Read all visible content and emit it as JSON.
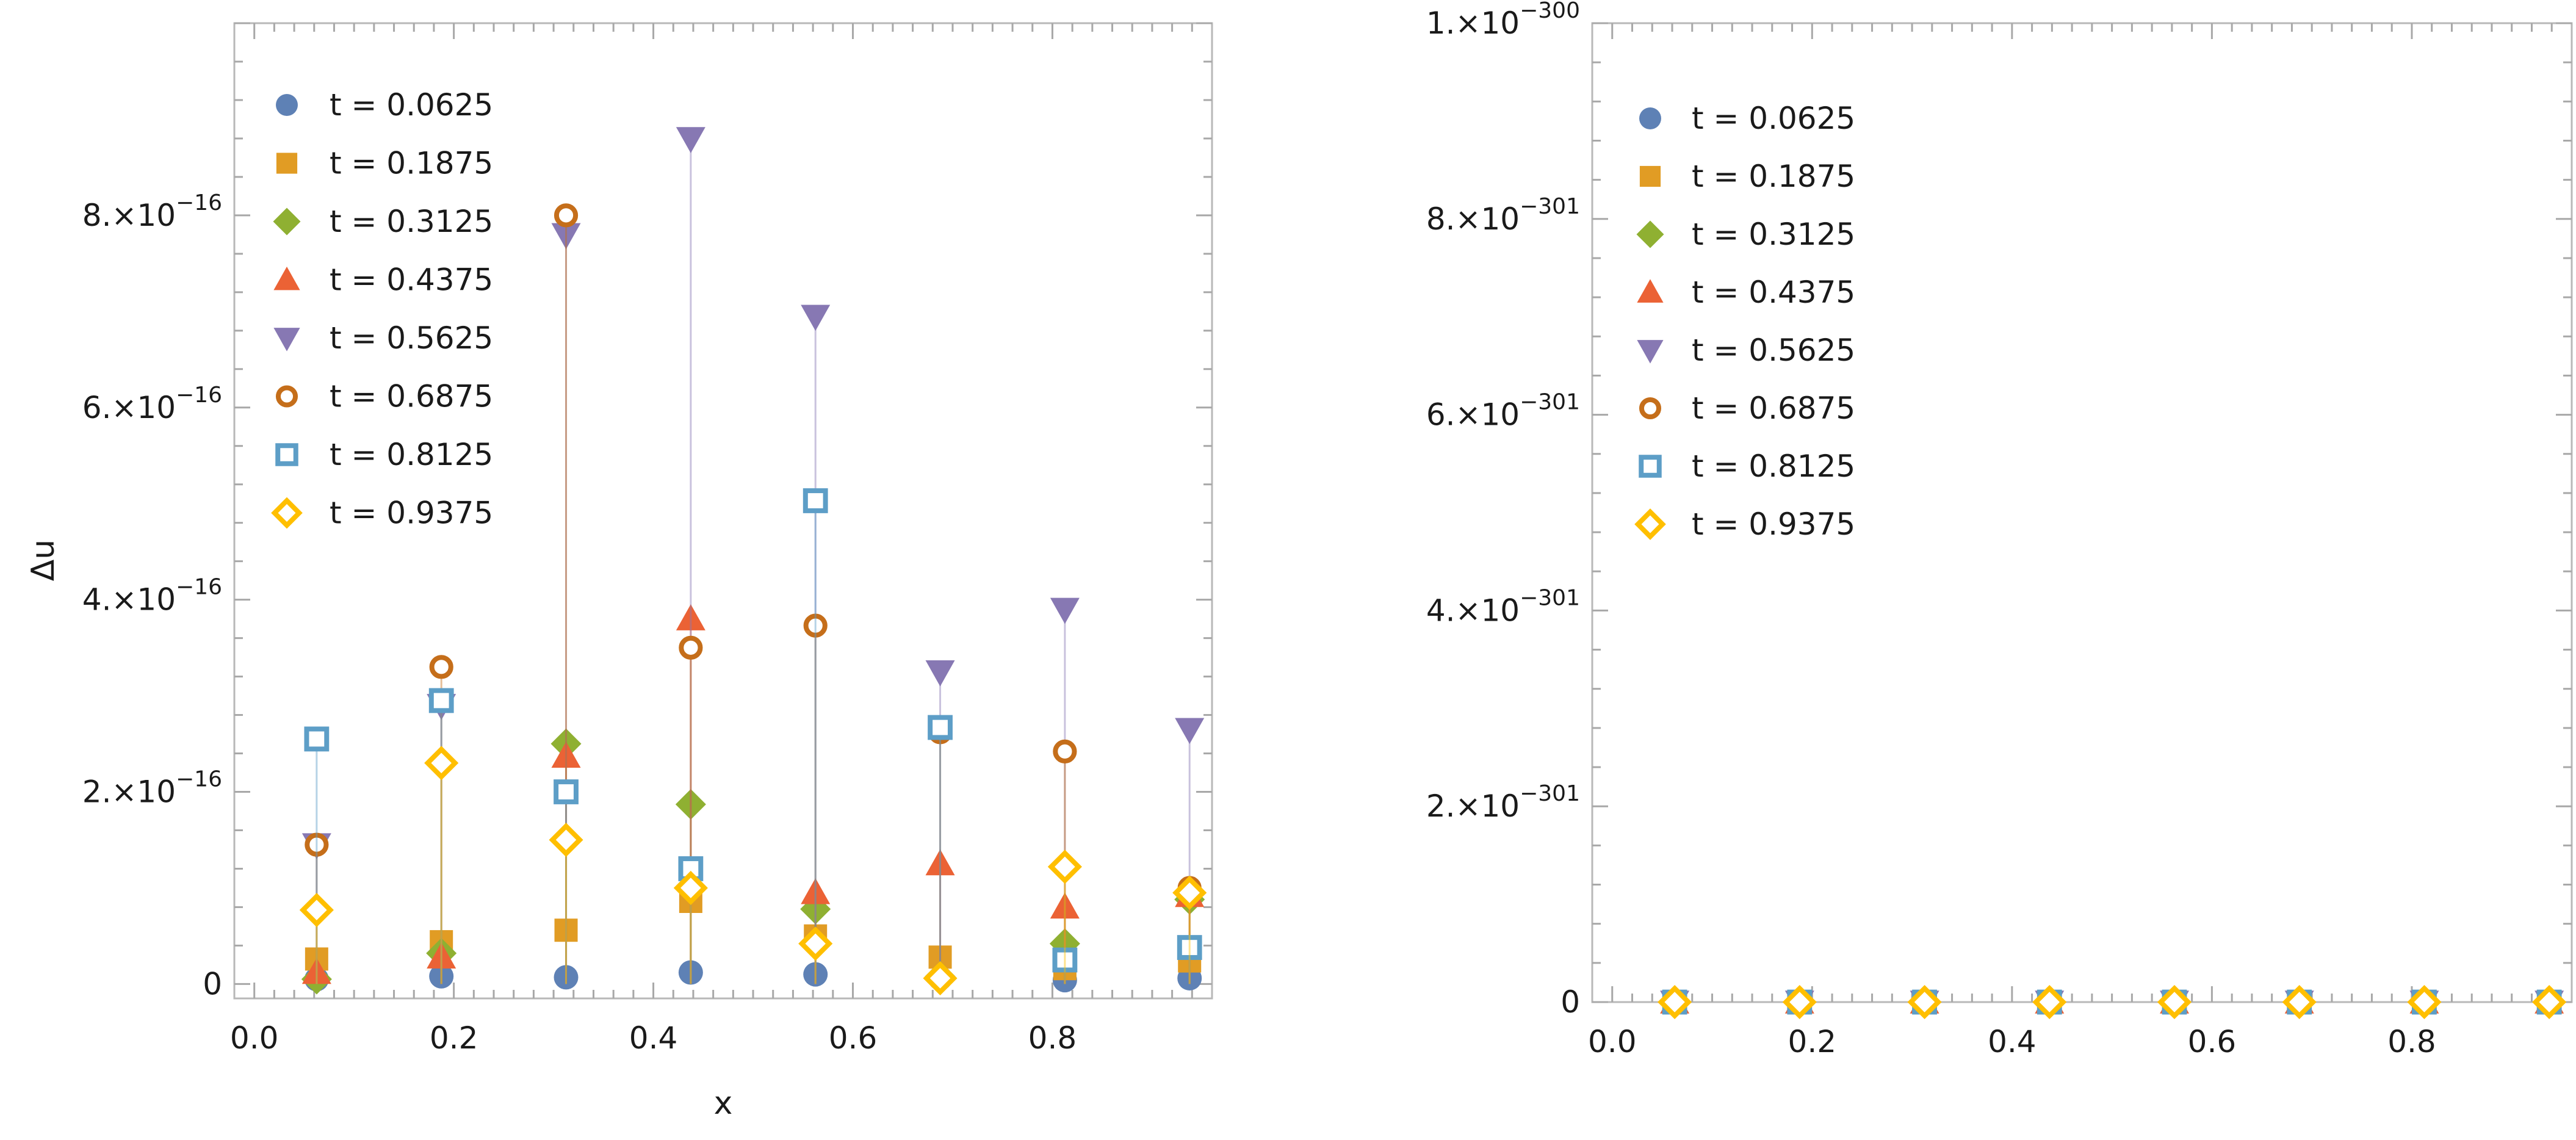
{
  "chart_data": [
    {
      "type": "scatter",
      "style": "stem",
      "title": "",
      "xlabel": "x",
      "ylabel": "Δu",
      "xlim": [
        -0.02,
        0.96
      ],
      "ylim": [
        -1.5e-17,
        1e-15
      ],
      "x_ticks": [
        0.0,
        0.2,
        0.4,
        0.6,
        0.8
      ],
      "x_tick_labels": [
        "0.0",
        "0.2",
        "0.4",
        "0.6",
        "0.8"
      ],
      "y_ticks": [
        0,
        2e-16,
        4e-16,
        6e-16,
        8e-16
      ],
      "y_tick_labels": [
        {
          "mant": "0",
          "exp": ""
        },
        {
          "mant": "2.×10",
          "exp": "−16"
        },
        {
          "mant": "4.×10",
          "exp": "−16"
        },
        {
          "mant": "6.×10",
          "exp": "−16"
        },
        {
          "mant": "8.×10",
          "exp": "−16"
        }
      ],
      "grid": false,
      "legend_position": "top-left",
      "x": [
        0.0625,
        0.1875,
        0.3125,
        0.4375,
        0.5625,
        0.6875,
        0.8125,
        0.9375
      ],
      "series": [
        {
          "name": "t = 0.0625",
          "label": "t = 0.0625",
          "marker": "circle",
          "color": "#5E81B5",
          "values": [
            5e-18,
            8e-18,
            7e-18,
            1.2e-17,
            1e-17,
            6e-18,
            4e-18,
            6e-18
          ]
        },
        {
          "name": "t = 0.1875",
          "label": "t = 0.1875",
          "marker": "square",
          "color": "#E19C24",
          "values": [
            2.6e-17,
            4.4e-17,
            5.6e-17,
            8.6e-17,
            5e-17,
            2.8e-17,
            1.6e-17,
            2.4e-17
          ]
        },
        {
          "name": "t = 0.3125",
          "label": "t = 0.3125",
          "marker": "diamond",
          "color": "#8FB032",
          "values": [
            5e-18,
            3.2e-17,
            2.5e-16,
            1.87e-16,
            7.8e-17,
            8e-18,
            4.2e-17,
            8.8e-17
          ]
        },
        {
          "name": "t = 0.4375",
          "label": "t = 0.4375",
          "marker": "triangle-up",
          "color": "#EB6235",
          "values": [
            1.2e-17,
            2.8e-17,
            2.37e-16,
            3.8e-16,
            9.5e-17,
            1.25e-16,
            8e-17,
            9.2e-17
          ]
        },
        {
          "name": "t = 0.5625",
          "label": "t = 0.5625",
          "marker": "triangle-down",
          "color": "#8778B3",
          "values": [
            1.45e-16,
            2.9e-16,
            7.8e-16,
            8.8e-16,
            6.95e-16,
            3.25e-16,
            3.9e-16,
            2.65e-16
          ]
        },
        {
          "name": "t = 0.6875",
          "label": "t = 0.6875",
          "marker": "open-circle",
          "color": "#C56E1A",
          "values": [
            1.45e-16,
            3.3e-16,
            8e-16,
            3.5e-16,
            3.73e-16,
            2.62e-16,
            2.42e-16,
            1e-16
          ]
        },
        {
          "name": "t = 0.8125",
          "label": "t = 0.8125",
          "marker": "open-square",
          "color": "#5D9EC7",
          "values": [
            2.55e-16,
            2.95e-16,
            2e-16,
            1.2e-16,
            5.03e-16,
            2.67e-16,
            2.5e-17,
            3.8e-17
          ]
        },
        {
          "name": "t = 0.9375",
          "label": "t = 0.9375",
          "marker": "open-diamond",
          "color": "#FFBF00",
          "values": [
            7.7e-17,
            2.3e-16,
            1.5e-16,
            1e-16,
            4.2e-17,
            6e-18,
            1.22e-16,
            9.5e-17
          ]
        }
      ]
    },
    {
      "type": "scatter",
      "style": "stem",
      "title": "",
      "xlabel": "",
      "ylabel": "",
      "xlim": [
        -0.02,
        0.96
      ],
      "ylim": [
        0,
        1e-300
      ],
      "x_ticks": [
        0.0,
        0.2,
        0.4,
        0.6,
        0.8
      ],
      "x_tick_labels": [
        "0.0",
        "0.2",
        "0.4",
        "0.6",
        "0.8"
      ],
      "y_ticks": [
        0,
        2e-301,
        4e-301,
        6e-301,
        8e-301,
        1e-300
      ],
      "y_tick_labels": [
        {
          "mant": "0",
          "exp": ""
        },
        {
          "mant": "2.×10",
          "exp": "−301"
        },
        {
          "mant": "4.×10",
          "exp": "−301"
        },
        {
          "mant": "6.×10",
          "exp": "−301"
        },
        {
          "mant": "8.×10",
          "exp": "−301"
        },
        {
          "mant": "1.×10",
          "exp": "−300"
        }
      ],
      "grid": false,
      "legend_position": "top-left",
      "x": [
        0.0625,
        0.1875,
        0.3125,
        0.4375,
        0.5625,
        0.6875,
        0.8125,
        0.9375
      ],
      "series": [
        {
          "name": "t = 0.0625",
          "label": "t = 0.0625",
          "marker": "circle",
          "color": "#5E81B5",
          "values": [
            0,
            0,
            0,
            0,
            0,
            0,
            0,
            0
          ]
        },
        {
          "name": "t = 0.1875",
          "label": "t = 0.1875",
          "marker": "square",
          "color": "#E19C24",
          "values": [
            0,
            0,
            0,
            0,
            0,
            0,
            0,
            0
          ]
        },
        {
          "name": "t = 0.3125",
          "label": "t = 0.3125",
          "marker": "diamond",
          "color": "#8FB032",
          "values": [
            0,
            0,
            0,
            0,
            0,
            0,
            0,
            0
          ]
        },
        {
          "name": "t = 0.4375",
          "label": "t = 0.4375",
          "marker": "triangle-up",
          "color": "#EB6235",
          "values": [
            0,
            0,
            0,
            0,
            0,
            0,
            0,
            0
          ]
        },
        {
          "name": "t = 0.5625",
          "label": "t = 0.5625",
          "marker": "triangle-down",
          "color": "#8778B3",
          "values": [
            0,
            0,
            0,
            0,
            0,
            0,
            0,
            0
          ]
        },
        {
          "name": "t = 0.6875",
          "label": "t = 0.6875",
          "marker": "open-circle",
          "color": "#C56E1A",
          "values": [
            0,
            0,
            0,
            0,
            0,
            0,
            0,
            0
          ]
        },
        {
          "name": "t = 0.8125",
          "label": "t = 0.8125",
          "marker": "open-square",
          "color": "#5D9EC7",
          "values": [
            0,
            0,
            0,
            0,
            0,
            0,
            0,
            0
          ]
        },
        {
          "name": "t = 0.9375",
          "label": "t = 0.9375",
          "marker": "open-diamond",
          "color": "#FFBF00",
          "values": [
            0,
            0,
            0,
            0,
            0,
            0,
            0,
            0
          ]
        }
      ]
    }
  ]
}
